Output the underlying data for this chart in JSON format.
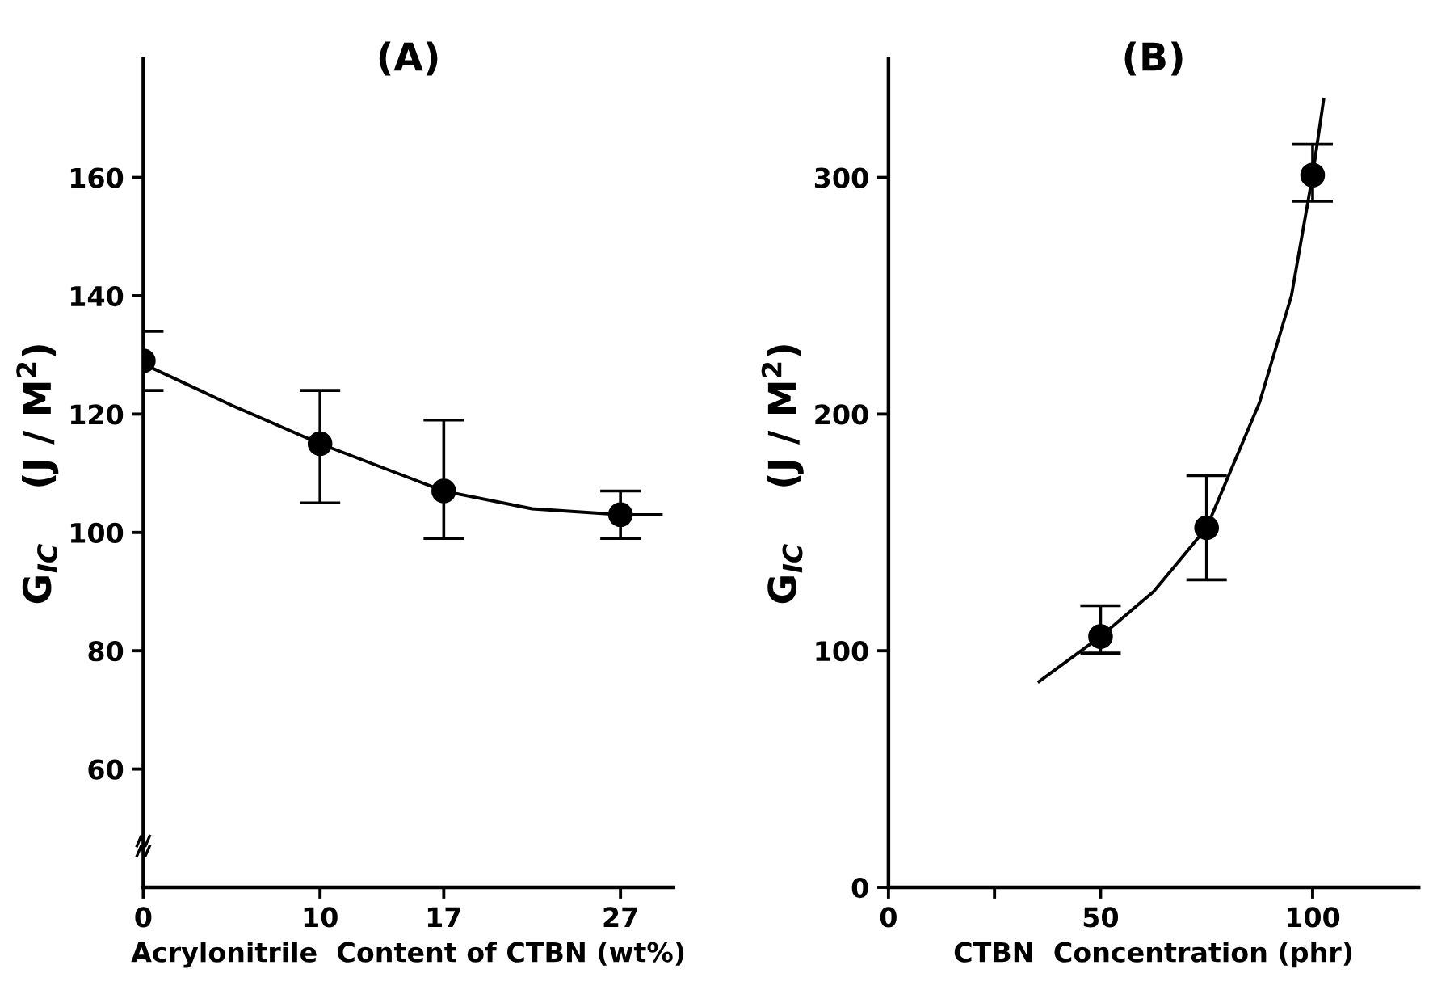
{
  "chart_data": [
    {
      "type": "scatter",
      "title": "(A)",
      "xlabel": "Acrylonitrile  Content of CTBN (wt%)",
      "ylabel": "G$_{IC}$    (J / M$^{2}$)",
      "x": [
        0,
        10,
        17,
        27
      ],
      "xlim": [
        0,
        30
      ],
      "xticks": [
        0,
        10,
        17,
        27
      ],
      "ylim": [
        40,
        180
      ],
      "yticks": [
        60,
        80,
        100,
        120,
        140,
        160
      ],
      "grid": false,
      "legend": false,
      "marker": "circle",
      "series": [
        {
          "color": "#000000",
          "values": [
            129,
            115,
            107,
            103
          ],
          "errors": [
            [
              124,
              134
            ],
            [
              105,
              124
            ],
            [
              99,
              119
            ],
            [
              99,
              107
            ]
          ]
        },
        {
          "type": "line",
          "color": "#000000",
          "x": [
            0,
            5,
            10,
            17,
            22,
            27,
            29.3
          ],
          "values": [
            128.5,
            121.5,
            115,
            107,
            104,
            103,
            103
          ],
          "marker": "none",
          "line_style": "solid"
        }
      ]
    },
    {
      "type": "scatter",
      "title": "(B)",
      "xlabel": "CTBN  Concentration (phr)",
      "ylabel": "G$_{IC}$    (J / M$^{2}$)",
      "x": [
        50,
        75,
        100
      ],
      "xlim": [
        0,
        125
      ],
      "xticks": [
        0,
        {
          "value": 25,
          "label": null
        },
        50,
        100
      ],
      "ylim": [
        0,
        350
      ],
      "yticks": [
        0,
        100,
        200,
        300
      ],
      "grid": false,
      "legend": false,
      "marker": "circle",
      "series": [
        {
          "color": "#000000",
          "values": [
            106,
            152,
            301
          ],
          "errors": [
            [
              99,
              119
            ],
            [
              130,
              174
            ],
            [
              290,
              314
            ]
          ]
        },
        {
          "type": "line",
          "color": "#000000",
          "x": [
            35.5,
            50,
            62.5,
            75,
            87.5,
            95,
            100,
            102.6
          ],
          "values": [
            87,
            106,
            125,
            152,
            205,
            250,
            301,
            333
          ],
          "marker": "none",
          "line_style": "solid"
        }
      ]
    }
  ]
}
